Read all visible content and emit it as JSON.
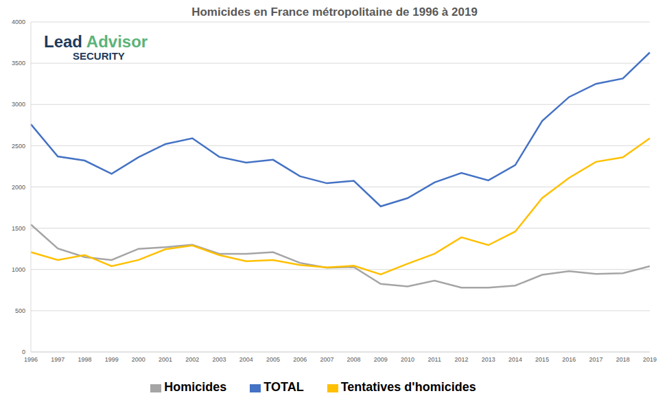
{
  "chart_data": {
    "type": "line",
    "title": "Homicides en France métropolitaine de 1996 à 2019",
    "annotations": [
      "Lead Advisor",
      "SECURITY"
    ],
    "categories": [
      "1996",
      "1997",
      "1998",
      "1999",
      "2000",
      "2001",
      "2002",
      "2003",
      "2004",
      "2005",
      "2006",
      "2007",
      "2008",
      "2009",
      "2010",
      "2011",
      "2012",
      "2013",
      "2014",
      "2015",
      "2016",
      "2017",
      "2018",
      "2019"
    ],
    "series": [
      {
        "name": "Homicides",
        "color": "#a5a5a5",
        "values": [
          1545,
          1255,
          1150,
          1115,
          1250,
          1270,
          1300,
          1190,
          1190,
          1210,
          1080,
          1020,
          1030,
          825,
          795,
          865,
          780,
          780,
          805,
          935,
          980,
          945,
          955,
          1040
        ]
      },
      {
        "name": "Tentatives d'homicides",
        "color": "#ffc000",
        "values": [
          1210,
          1115,
          1175,
          1040,
          1115,
          1245,
          1290,
          1175,
          1100,
          1115,
          1055,
          1025,
          1045,
          940,
          1070,
          1190,
          1390,
          1295,
          1460,
          1865,
          2110,
          2305,
          2360,
          2590
        ]
      },
      {
        "name": "TOTAL",
        "color": "#4472c4",
        "values": [
          2760,
          2370,
          2320,
          2160,
          2360,
          2520,
          2590,
          2365,
          2295,
          2330,
          2130,
          2045,
          2075,
          1765,
          1865,
          2055,
          2170,
          2080,
          2265,
          2800,
          3090,
          3250,
          3315,
          3630
        ]
      }
    ],
    "ylim": [
      0,
      4000
    ],
    "yticks": [
      0,
      500,
      1000,
      1500,
      2000,
      2500,
      3000,
      3500,
      4000
    ],
    "grid": true,
    "legend": "bottom"
  }
}
